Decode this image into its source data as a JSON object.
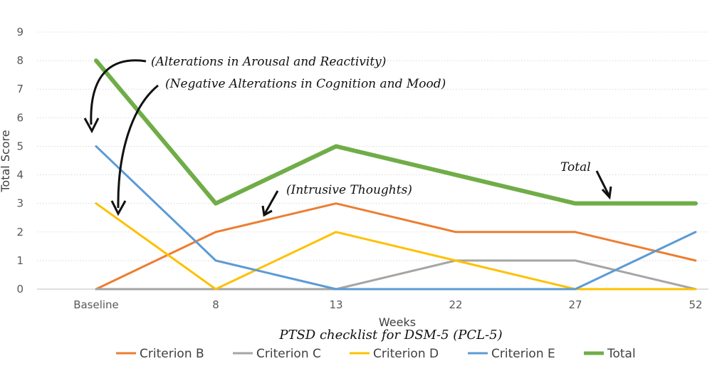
{
  "chart_data": {
    "type": "line",
    "title": "",
    "caption": "PTSD checklist for DSM-5 (PCL-5)",
    "xlabel": "Weeks",
    "ylabel": "Total Score",
    "ylim": [
      0,
      9
    ],
    "yticks": [
      "0",
      "1",
      "2",
      "3",
      "4",
      "5",
      "6",
      "7",
      "8",
      "9"
    ],
    "grid": true,
    "categories": [
      "Baseline",
      "8",
      "13",
      "22",
      "27",
      "52"
    ],
    "series": [
      {
        "name": "Criterion B",
        "color": "#ED7D31",
        "width": 3,
        "values": [
          0,
          2,
          3,
          2,
          2,
          1
        ]
      },
      {
        "name": "Criterion C",
        "color": "#A5A5A5",
        "width": 3,
        "values": [
          0,
          0,
          0,
          1,
          1,
          0
        ]
      },
      {
        "name": "Criterion D",
        "color": "#FFC000",
        "width": 3,
        "values": [
          3,
          0,
          2,
          1,
          0,
          0
        ]
      },
      {
        "name": "Criterion E",
        "color": "#5B9BD5",
        "width": 3,
        "values": [
          5,
          1,
          0,
          0,
          0,
          2
        ]
      },
      {
        "name": "Total",
        "color": "#70AD47",
        "width": 6,
        "values": [
          8,
          3,
          5,
          4,
          3,
          3
        ]
      }
    ],
    "annotations": [
      {
        "text": "(Alterations in Arousal and Reactivity)"
      },
      {
        "text": "(Negative Alterations in Cognition and Mood)"
      },
      {
        "text": "(Intrusive Thoughts)"
      },
      {
        "text": "Total"
      }
    ],
    "legend_position": "bottom"
  }
}
